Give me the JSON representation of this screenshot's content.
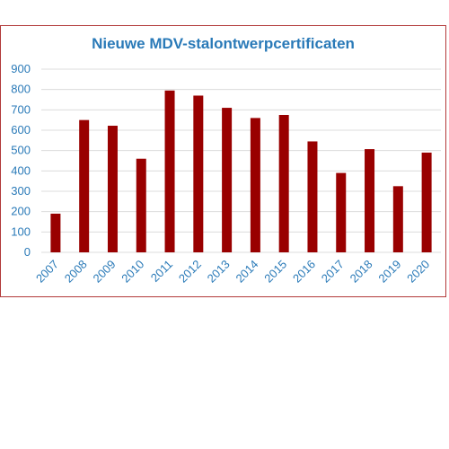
{
  "chart_data": {
    "type": "bar",
    "title": "Nieuwe MDV-stalontwerpcertificaten",
    "xlabel": "",
    "ylabel": "",
    "categories": [
      "2007",
      "2008",
      "2009",
      "2010",
      "2011",
      "2012",
      "2013",
      "2014",
      "2015",
      "2016",
      "2017",
      "2018",
      "2019",
      "2020"
    ],
    "values": [
      190,
      650,
      622,
      460,
      795,
      770,
      710,
      660,
      675,
      545,
      390,
      507,
      325,
      490
    ],
    "ylim": [
      0,
      900
    ],
    "yticks": [
      0,
      100,
      200,
      300,
      400,
      500,
      600,
      700,
      800,
      900
    ],
    "grid": true,
    "bar_color": "#990000",
    "text_color": "#2a7ab8",
    "frame_color": "#b23a3a"
  }
}
